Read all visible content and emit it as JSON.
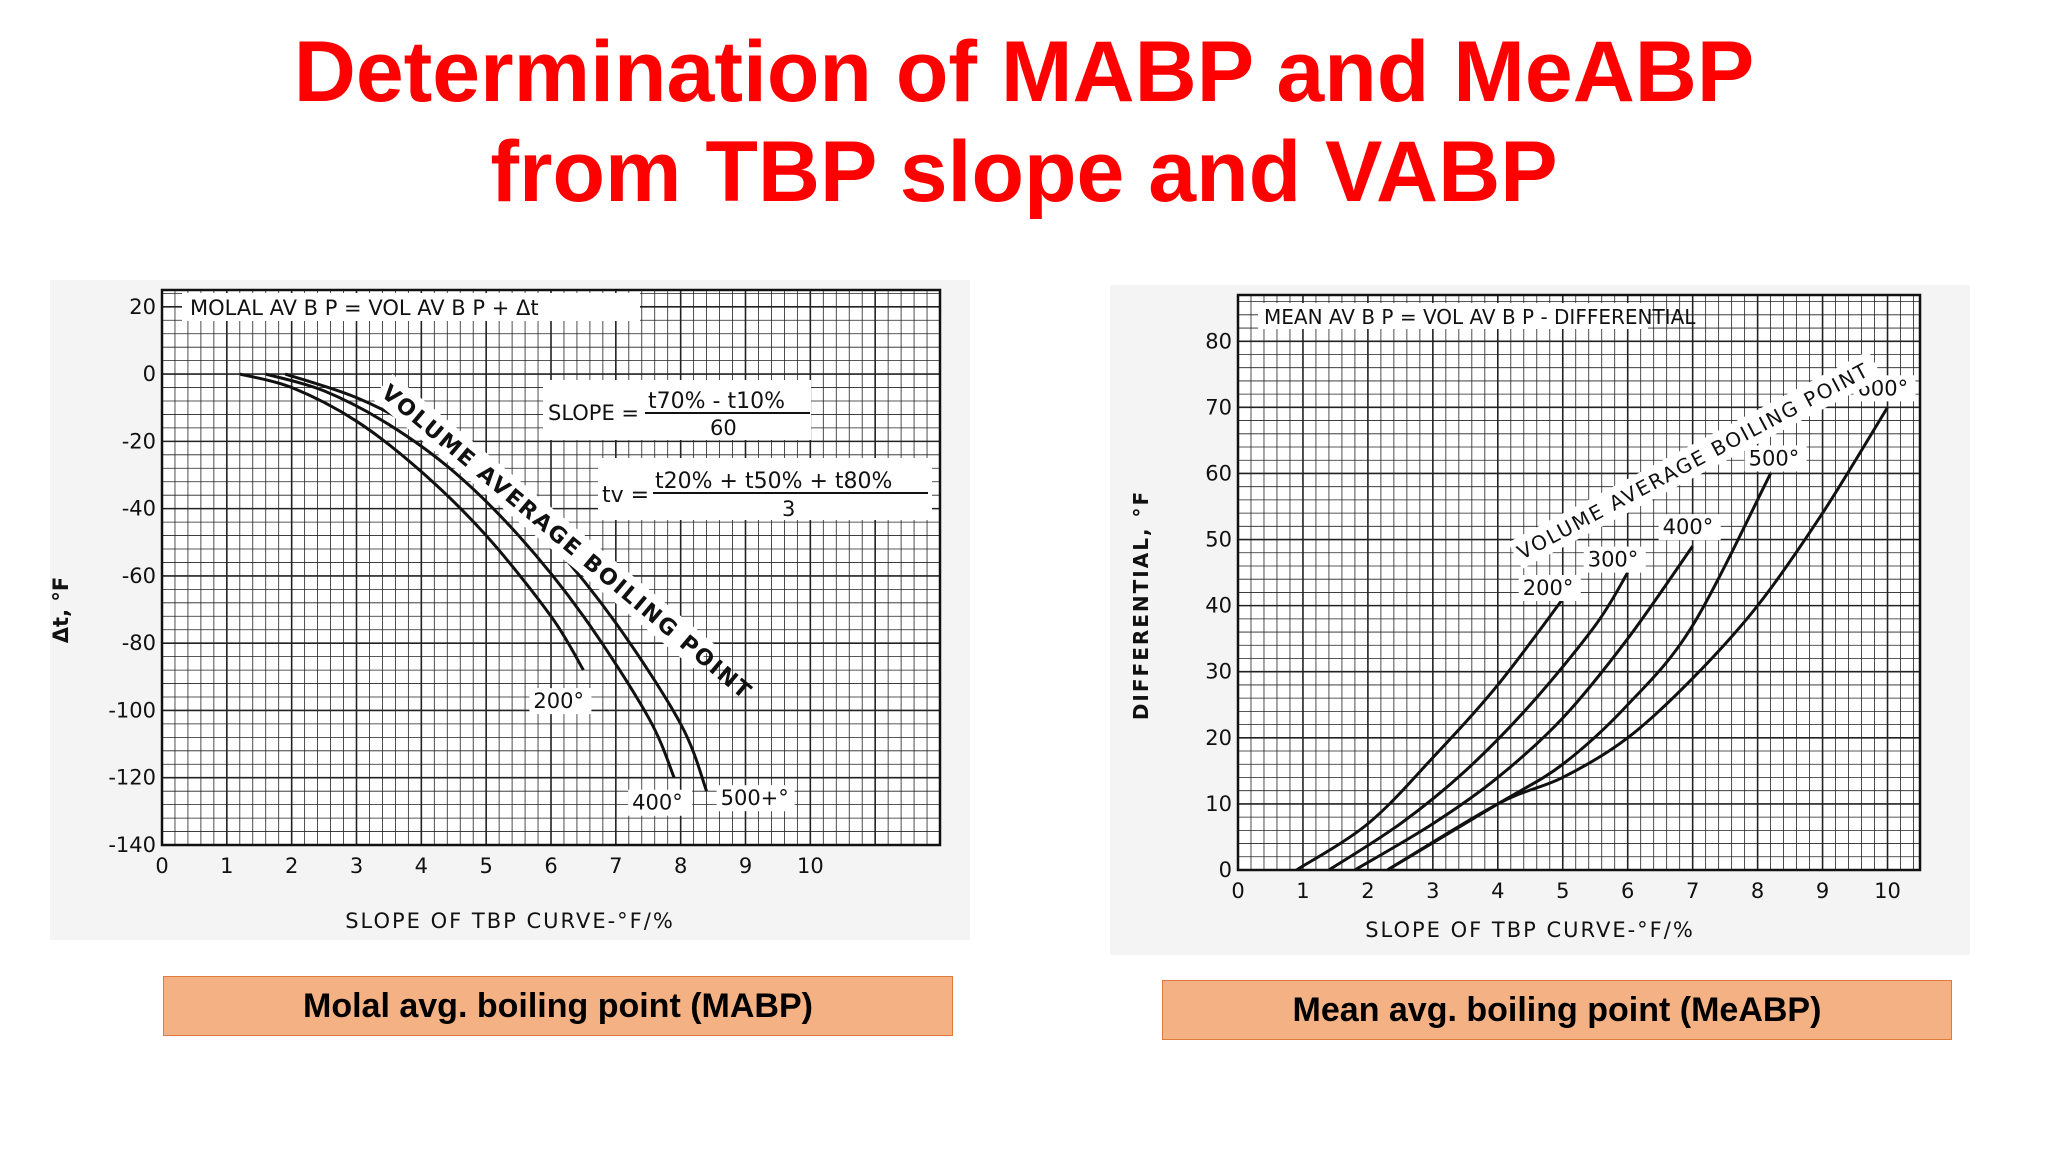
{
  "slide": {
    "title_line1": "Determination of MABP and MeABP",
    "title_line2": "from TBP slope and VABP",
    "caption_left": "Molal avg. boiling point (MABP)",
    "caption_right": "Mean avg. boiling point (MeABP)",
    "title_color": "#ff0000",
    "caption_bg": "#f4b183"
  },
  "chart_data": [
    {
      "type": "line",
      "title": "MOLAL  AV  B P = VOL  AV  B P  +  Δt",
      "xlabel": "SLOPE  OF  TBP  CURVE-°F/%",
      "ylabel": "Δt, °F",
      "xlim": [
        0,
        12
      ],
      "ylim": [
        -140,
        25
      ],
      "xticks": [
        "0",
        "1",
        "2",
        "3",
        "4",
        "5",
        "6",
        "7",
        "8",
        "9",
        "10"
      ],
      "yticks": [
        "20",
        "0",
        "-20",
        "-40",
        "-60",
        "-80",
        "-100",
        "-120",
        "-140"
      ],
      "annotations": {
        "slope_eq_lhs": "SLOPE =",
        "slope_eq_num": "t70% - t10%",
        "slope_eq_den": "60",
        "tv_eq_lhs": "tv =",
        "tv_eq_num": "t20% + t50% + t80%",
        "tv_eq_den": "3",
        "curve_family_label": "VOLUME AVERAGE BOILING POINT"
      },
      "series": [
        {
          "name": "200°",
          "x": [
            1.2,
            2,
            3,
            4,
            5,
            6,
            6.5
          ],
          "y": [
            0,
            -4,
            -14,
            -29,
            -48,
            -72,
            -88
          ]
        },
        {
          "name": "400°",
          "x": [
            1.6,
            2.5,
            3.5,
            4.5,
            5.5,
            6.5,
            7.5,
            7.9
          ],
          "y": [
            0,
            -5,
            -15,
            -29,
            -48,
            -72,
            -102,
            -120
          ]
        },
        {
          "name": "500+°",
          "x": [
            1.9,
            3,
            4,
            5,
            6,
            7,
            8,
            8.4
          ],
          "y": [
            0,
            -7,
            -17,
            -31,
            -50,
            -74,
            -104,
            -124
          ]
        }
      ]
    },
    {
      "type": "line",
      "title": "MEAN  AV  B P = VOL  AV  B P - DIFFERENTIAL",
      "xlabel": "SLOPE  OF  TBP  CURVE-°F/%",
      "ylabel": "DIFFERENTIAL, °F",
      "xlim": [
        0,
        10.5
      ],
      "ylim": [
        0,
        87
      ],
      "xticks": [
        "0",
        "1",
        "2",
        "3",
        "4",
        "5",
        "6",
        "7",
        "8",
        "9",
        "10"
      ],
      "yticks": [
        "80",
        "70",
        "60",
        "50",
        "40",
        "30",
        "20",
        "10",
        "0"
      ],
      "annotations": {
        "curve_family_label": "VOLUME  AVERAGE  BOILING  POINT"
      },
      "series": [
        {
          "name": "200°",
          "x": [
            0.9,
            2,
            3,
            4,
            5
          ],
          "y": [
            0,
            7,
            17,
            28,
            41
          ]
        },
        {
          "name": "300°",
          "x": [
            1.4,
            2.5,
            3.5,
            4.5,
            5.5,
            6
          ],
          "y": [
            0,
            7,
            15,
            25,
            37,
            45
          ]
        },
        {
          "name": "400°",
          "x": [
            1.8,
            3,
            4,
            5,
            6,
            7
          ],
          "y": [
            0,
            7,
            14,
            23,
            35,
            49
          ]
        },
        {
          "name": "500°",
          "x": [
            2.3,
            4,
            5,
            6,
            7,
            8.2
          ],
          "y": [
            0,
            10,
            16,
            25,
            37,
            60
          ]
        },
        {
          "name": "600°",
          "x": [
            2.3,
            4,
            5,
            6,
            7,
            8,
            9,
            10
          ],
          "y": [
            0,
            10,
            14,
            20,
            29,
            40,
            54,
            70
          ]
        }
      ]
    }
  ]
}
